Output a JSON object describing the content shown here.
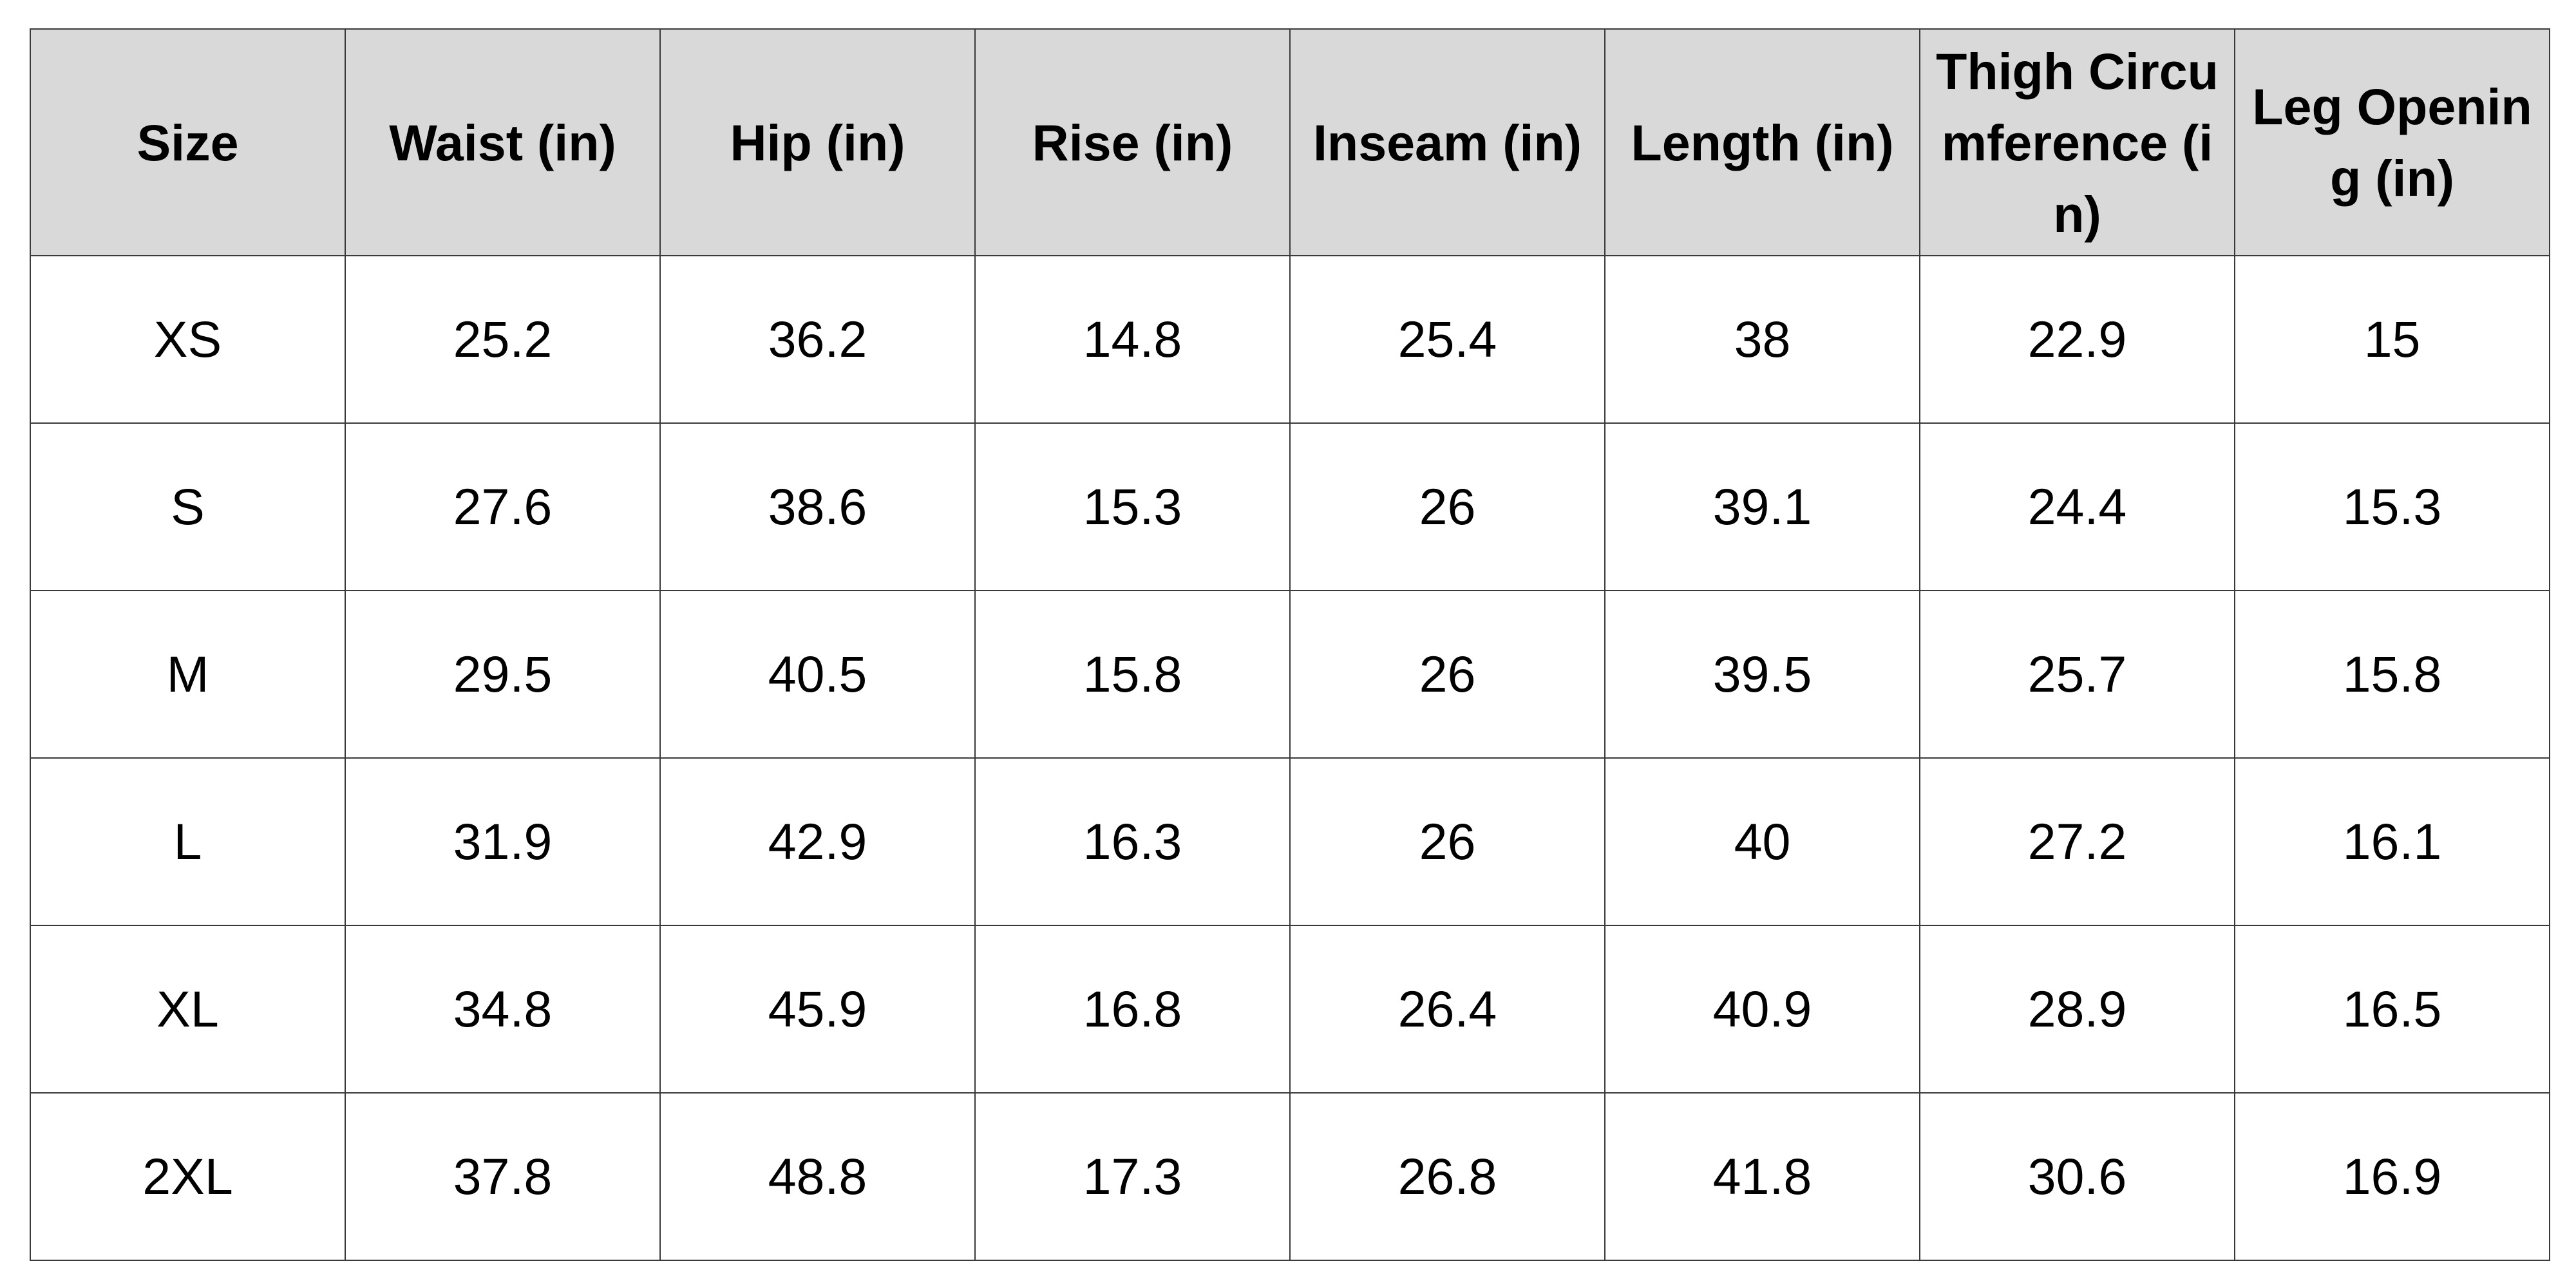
{
  "table": {
    "headers": [
      "Size",
      "Waist (in)",
      "Hip (in)",
      "Rise (in)",
      "Inseam (in)",
      "Length (in)",
      "Thigh Circumference (in)",
      "Leg Opening (in)"
    ],
    "rows": [
      [
        "XS",
        "25.2",
        "36.2",
        "14.8",
        "25.4",
        "38",
        "22.9",
        "15"
      ],
      [
        "S",
        "27.6",
        "38.6",
        "15.3",
        "26",
        "39.1",
        "24.4",
        "15.3"
      ],
      [
        "M",
        "29.5",
        "40.5",
        "15.8",
        "26",
        "39.5",
        "25.7",
        "15.8"
      ],
      [
        "L",
        "31.9",
        "42.9",
        "16.3",
        "26",
        "40",
        "27.2",
        "16.1"
      ],
      [
        "XL",
        "34.8",
        "45.9",
        "16.8",
        "26.4",
        "40.9",
        "28.9",
        "16.5"
      ],
      [
        "2XL",
        "37.8",
        "48.8",
        "17.3",
        "26.8",
        "41.8",
        "30.6",
        "16.9"
      ]
    ]
  },
  "colors": {
    "header_background": "#d9d9d9",
    "border": "#3a3a3a",
    "text": "#000000"
  }
}
